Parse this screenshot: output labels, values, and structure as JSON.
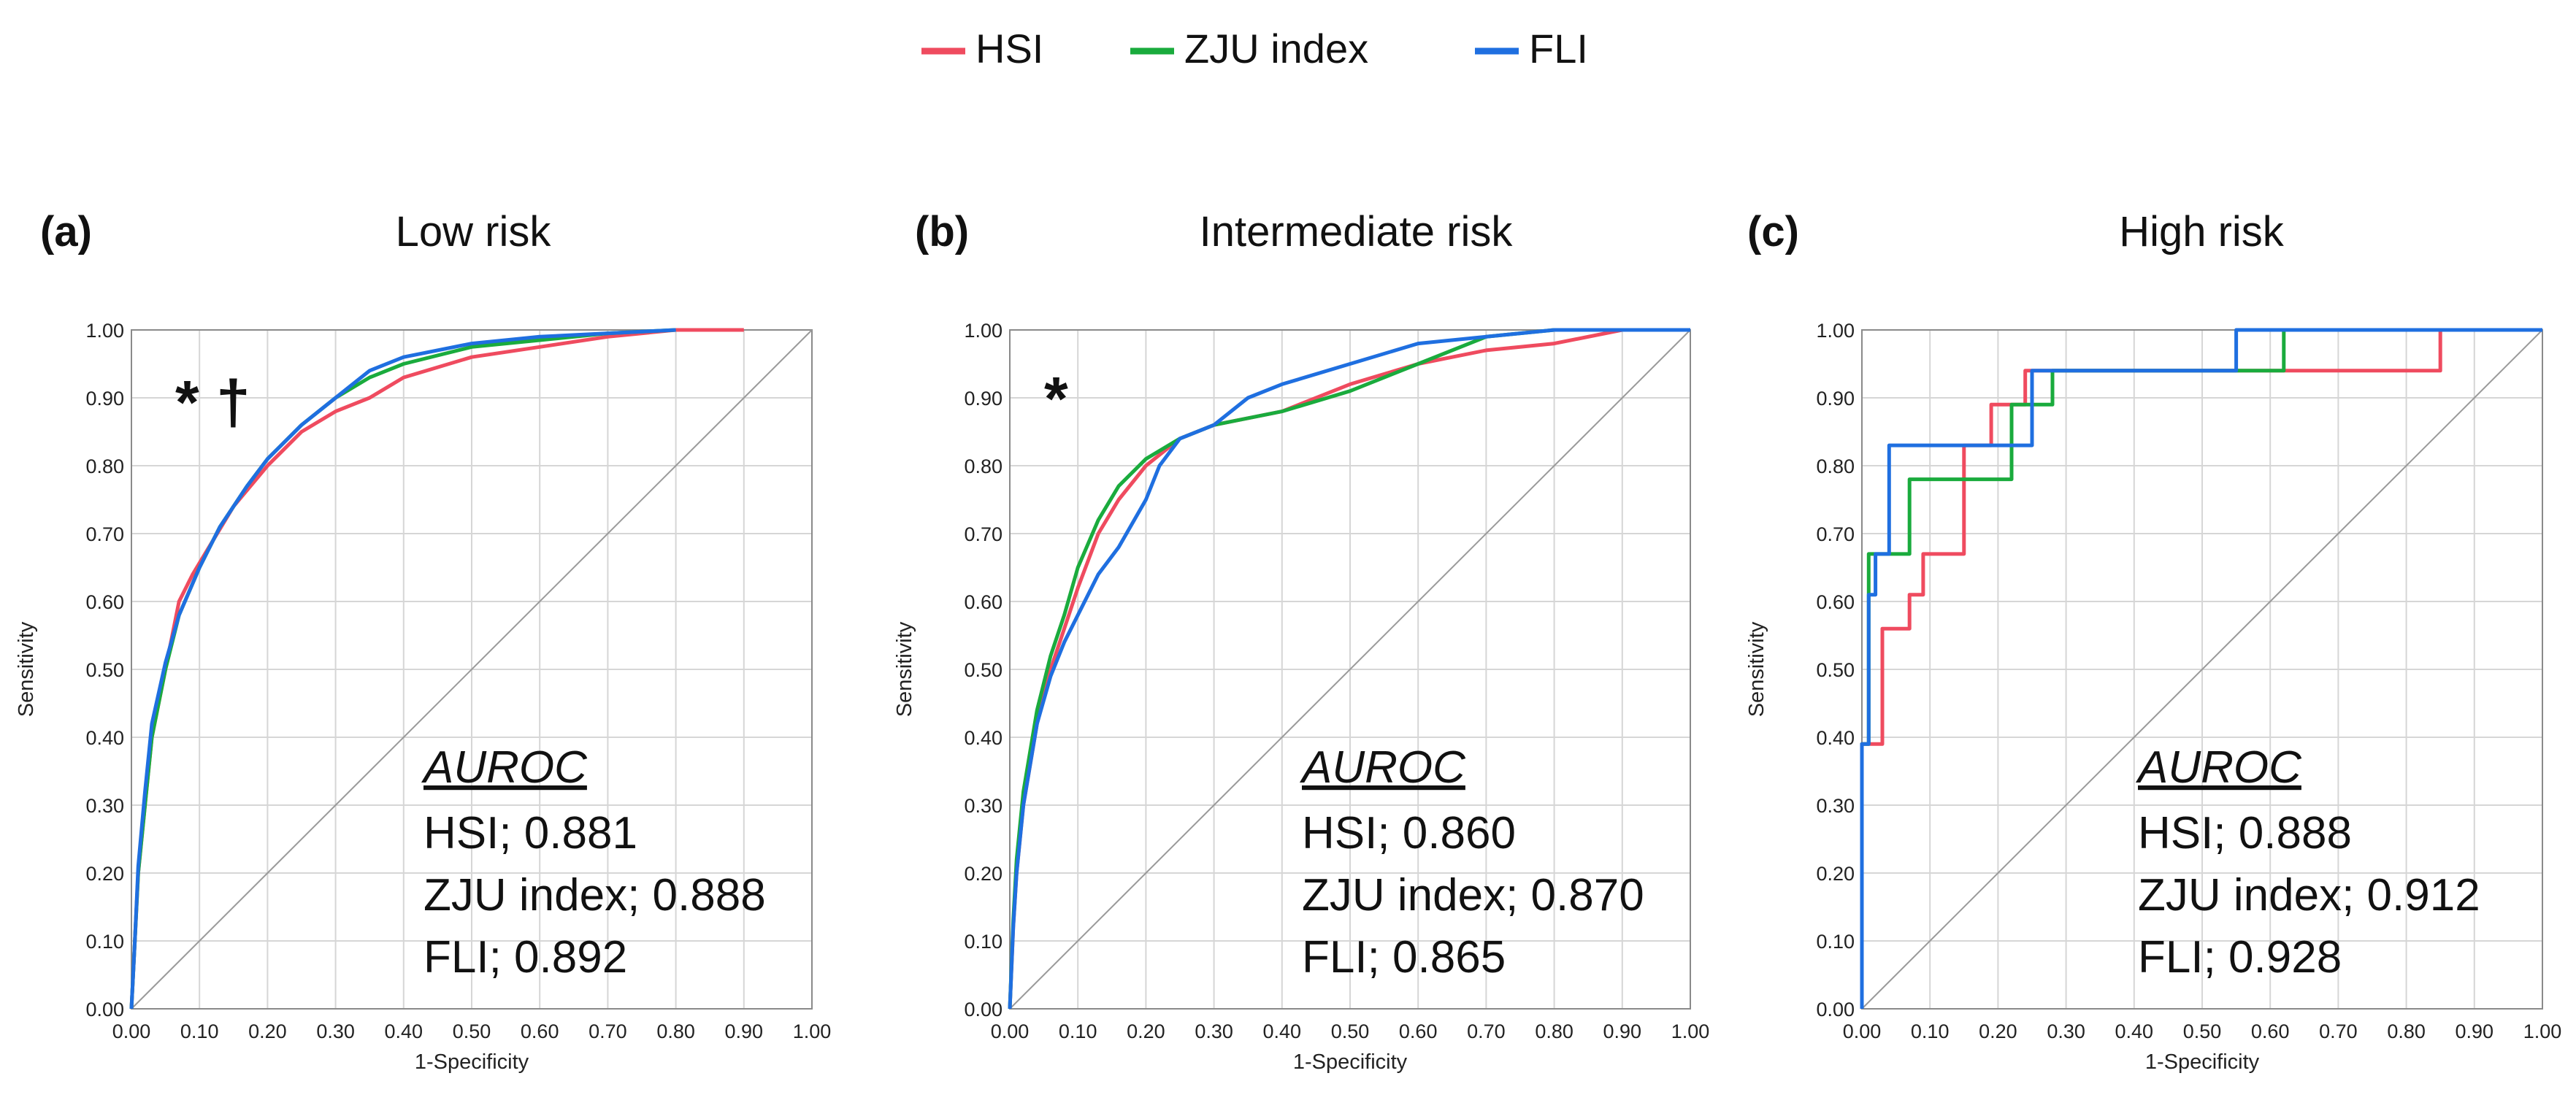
{
  "legend": [
    {
      "name": "HSI",
      "color": "#ef4b5f"
    },
    {
      "name": "ZJU index",
      "color": "#1aab3d"
    },
    {
      "name": "FLI",
      "color": "#1f6fe0"
    }
  ],
  "chart_data": [
    {
      "type": "line",
      "panel_label": "(a)",
      "title": "Low risk",
      "xlabel": "1-Specificity",
      "ylabel": "Sensitivity",
      "xlim": [
        0,
        1
      ],
      "ylim": [
        0,
        1
      ],
      "x_ticks": [
        "0.00",
        "0.10",
        "0.20",
        "0.30",
        "0.40",
        "0.50",
        "0.60",
        "0.70",
        "0.80",
        "0.90",
        "1.00"
      ],
      "y_ticks": [
        "0.00",
        "0.10",
        "0.20",
        "0.30",
        "0.40",
        "0.50",
        "0.60",
        "0.70",
        "0.80",
        "0.90",
        "1.00"
      ],
      "grid": true,
      "step": false,
      "annotation": "* †",
      "auroc": {
        "heading": "AUROC",
        "lines": [
          "HSI; 0.881",
          "ZJU index; 0.888",
          "FLI; 0.892"
        ]
      },
      "series": [
        {
          "name": "HSI",
          "color": "#ef4b5f",
          "points": [
            [
              0,
              0
            ],
            [
              0.005,
              0.1
            ],
            [
              0.01,
              0.2
            ],
            [
              0.02,
              0.3
            ],
            [
              0.03,
              0.4
            ],
            [
              0.05,
              0.5
            ],
            [
              0.07,
              0.6
            ],
            [
              0.09,
              0.64
            ],
            [
              0.12,
              0.69
            ],
            [
              0.15,
              0.74
            ],
            [
              0.2,
              0.8
            ],
            [
              0.25,
              0.85
            ],
            [
              0.3,
              0.88
            ],
            [
              0.35,
              0.9
            ],
            [
              0.4,
              0.93
            ],
            [
              0.5,
              0.96
            ],
            [
              0.6,
              0.975
            ],
            [
              0.7,
              0.99
            ],
            [
              0.8,
              1.0
            ],
            [
              0.9,
              1.0
            ]
          ]
        },
        {
          "name": "ZJU index",
          "color": "#1aab3d",
          "points": [
            [
              0,
              0
            ],
            [
              0.005,
              0.1
            ],
            [
              0.01,
              0.2
            ],
            [
              0.02,
              0.3
            ],
            [
              0.03,
              0.4
            ],
            [
              0.05,
              0.5
            ],
            [
              0.07,
              0.58
            ],
            [
              0.1,
              0.65
            ],
            [
              0.13,
              0.71
            ],
            [
              0.17,
              0.77
            ],
            [
              0.2,
              0.81
            ],
            [
              0.25,
              0.86
            ],
            [
              0.3,
              0.9
            ],
            [
              0.35,
              0.93
            ],
            [
              0.4,
              0.95
            ],
            [
              0.5,
              0.975
            ],
            [
              0.6,
              0.985
            ],
            [
              0.7,
              0.995
            ],
            [
              0.8,
              1.0
            ]
          ]
        },
        {
          "name": "FLI",
          "color": "#1f6fe0",
          "points": [
            [
              0,
              0
            ],
            [
              0.005,
              0.1
            ],
            [
              0.01,
              0.21
            ],
            [
              0.02,
              0.32
            ],
            [
              0.03,
              0.42
            ],
            [
              0.05,
              0.51
            ],
            [
              0.07,
              0.58
            ],
            [
              0.1,
              0.65
            ],
            [
              0.13,
              0.71
            ],
            [
              0.17,
              0.77
            ],
            [
              0.2,
              0.81
            ],
            [
              0.25,
              0.86
            ],
            [
              0.3,
              0.9
            ],
            [
              0.35,
              0.94
            ],
            [
              0.4,
              0.96
            ],
            [
              0.5,
              0.98
            ],
            [
              0.6,
              0.99
            ],
            [
              0.7,
              0.995
            ],
            [
              0.8,
              1.0
            ]
          ]
        }
      ]
    },
    {
      "type": "line",
      "panel_label": "(b)",
      "title": "Intermediate risk",
      "xlabel": "1-Specificity",
      "ylabel": "Sensitivity",
      "xlim": [
        0,
        1
      ],
      "ylim": [
        0,
        1
      ],
      "x_ticks": [
        "0.00",
        "0.10",
        "0.20",
        "0.30",
        "0.40",
        "0.50",
        "0.60",
        "0.70",
        "0.80",
        "0.90",
        "1.00"
      ],
      "y_ticks": [
        "0.00",
        "0.10",
        "0.20",
        "0.30",
        "0.40",
        "0.50",
        "0.60",
        "0.70",
        "0.80",
        "0.90",
        "1.00"
      ],
      "grid": true,
      "step": false,
      "annotation": "*",
      "auroc": {
        "heading": "AUROC",
        "lines": [
          "HSI; 0.860",
          "ZJU index; 0.870",
          "FLI; 0.865"
        ]
      },
      "series": [
        {
          "name": "HSI",
          "color": "#ef4b5f",
          "points": [
            [
              0,
              0
            ],
            [
              0.005,
              0.12
            ],
            [
              0.01,
              0.2
            ],
            [
              0.02,
              0.3
            ],
            [
              0.04,
              0.42
            ],
            [
              0.06,
              0.5
            ],
            [
              0.08,
              0.56
            ],
            [
              0.1,
              0.62
            ],
            [
              0.13,
              0.7
            ],
            [
              0.16,
              0.75
            ],
            [
              0.2,
              0.8
            ],
            [
              0.25,
              0.84
            ],
            [
              0.3,
              0.86
            ],
            [
              0.4,
              0.88
            ],
            [
              0.5,
              0.92
            ],
            [
              0.6,
              0.95
            ],
            [
              0.7,
              0.97
            ],
            [
              0.8,
              0.98
            ],
            [
              0.9,
              1.0
            ],
            [
              1.0,
              1.0
            ]
          ]
        },
        {
          "name": "ZJU index",
          "color": "#1aab3d",
          "points": [
            [
              0,
              0
            ],
            [
              0.005,
              0.13
            ],
            [
              0.01,
              0.22
            ],
            [
              0.02,
              0.32
            ],
            [
              0.04,
              0.44
            ],
            [
              0.06,
              0.52
            ],
            [
              0.08,
              0.58
            ],
            [
              0.1,
              0.65
            ],
            [
              0.13,
              0.72
            ],
            [
              0.16,
              0.77
            ],
            [
              0.2,
              0.81
            ],
            [
              0.25,
              0.84
            ],
            [
              0.3,
              0.86
            ],
            [
              0.4,
              0.88
            ],
            [
              0.5,
              0.91
            ],
            [
              0.6,
              0.95
            ],
            [
              0.7,
              0.99
            ],
            [
              0.8,
              1.0
            ],
            [
              1.0,
              1.0
            ]
          ]
        },
        {
          "name": "FLI",
          "color": "#1f6fe0",
          "points": [
            [
              0,
              0
            ],
            [
              0.005,
              0.12
            ],
            [
              0.01,
              0.2
            ],
            [
              0.02,
              0.3
            ],
            [
              0.04,
              0.42
            ],
            [
              0.06,
              0.49
            ],
            [
              0.08,
              0.54
            ],
            [
              0.1,
              0.58
            ],
            [
              0.13,
              0.64
            ],
            [
              0.16,
              0.68
            ],
            [
              0.2,
              0.75
            ],
            [
              0.22,
              0.8
            ],
            [
              0.25,
              0.84
            ],
            [
              0.3,
              0.86
            ],
            [
              0.35,
              0.9
            ],
            [
              0.4,
              0.92
            ],
            [
              0.5,
              0.95
            ],
            [
              0.6,
              0.98
            ],
            [
              0.7,
              0.99
            ],
            [
              0.8,
              1.0
            ],
            [
              1.0,
              1.0
            ]
          ]
        }
      ]
    },
    {
      "type": "line",
      "panel_label": "(c)",
      "title": "High risk",
      "xlabel": "1-Specificity",
      "ylabel": "Sensitivity",
      "xlim": [
        0,
        1
      ],
      "ylim": [
        0,
        1
      ],
      "x_ticks": [
        "0.00",
        "0.10",
        "0.20",
        "0.30",
        "0.40",
        "0.50",
        "0.60",
        "0.70",
        "0.80",
        "0.90",
        "1.00"
      ],
      "y_ticks": [
        "0.00",
        "0.10",
        "0.20",
        "0.30",
        "0.40",
        "0.50",
        "0.60",
        "0.70",
        "0.80",
        "0.90",
        "1.00"
      ],
      "grid": true,
      "step": true,
      "annotation": "",
      "auroc": {
        "heading": "AUROC",
        "lines": [
          "HSI; 0.888",
          "ZJU index; 0.912",
          "FLI; 0.928"
        ]
      },
      "series": [
        {
          "name": "HSI",
          "color": "#ef4b5f",
          "points": [
            [
              0,
              0
            ],
            [
              0,
              0.39
            ],
            [
              0.03,
              0.39
            ],
            [
              0.03,
              0.56
            ],
            [
              0.07,
              0.56
            ],
            [
              0.07,
              0.61
            ],
            [
              0.09,
              0.61
            ],
            [
              0.09,
              0.67
            ],
            [
              0.15,
              0.67
            ],
            [
              0.15,
              0.83
            ],
            [
              0.19,
              0.83
            ],
            [
              0.19,
              0.89
            ],
            [
              0.24,
              0.89
            ],
            [
              0.24,
              0.94
            ],
            [
              0.85,
              0.94
            ],
            [
              0.85,
              1.0
            ],
            [
              1.0,
              1.0
            ]
          ]
        },
        {
          "name": "ZJU index",
          "color": "#1aab3d",
          "points": [
            [
              0,
              0
            ],
            [
              0,
              0.39
            ],
            [
              0.01,
              0.39
            ],
            [
              0.01,
              0.67
            ],
            [
              0.07,
              0.67
            ],
            [
              0.07,
              0.78
            ],
            [
              0.22,
              0.78
            ],
            [
              0.22,
              0.89
            ],
            [
              0.28,
              0.89
            ],
            [
              0.28,
              0.94
            ],
            [
              0.62,
              0.94
            ],
            [
              0.62,
              1.0
            ],
            [
              1.0,
              1.0
            ]
          ]
        },
        {
          "name": "FLI",
          "color": "#1f6fe0",
          "points": [
            [
              0,
              0
            ],
            [
              0,
              0.39
            ],
            [
              0.01,
              0.39
            ],
            [
              0.01,
              0.61
            ],
            [
              0.02,
              0.61
            ],
            [
              0.02,
              0.67
            ],
            [
              0.04,
              0.67
            ],
            [
              0.04,
              0.83
            ],
            [
              0.25,
              0.83
            ],
            [
              0.25,
              0.94
            ],
            [
              0.55,
              0.94
            ],
            [
              0.55,
              1.0
            ],
            [
              1.0,
              1.0
            ]
          ]
        }
      ]
    }
  ]
}
